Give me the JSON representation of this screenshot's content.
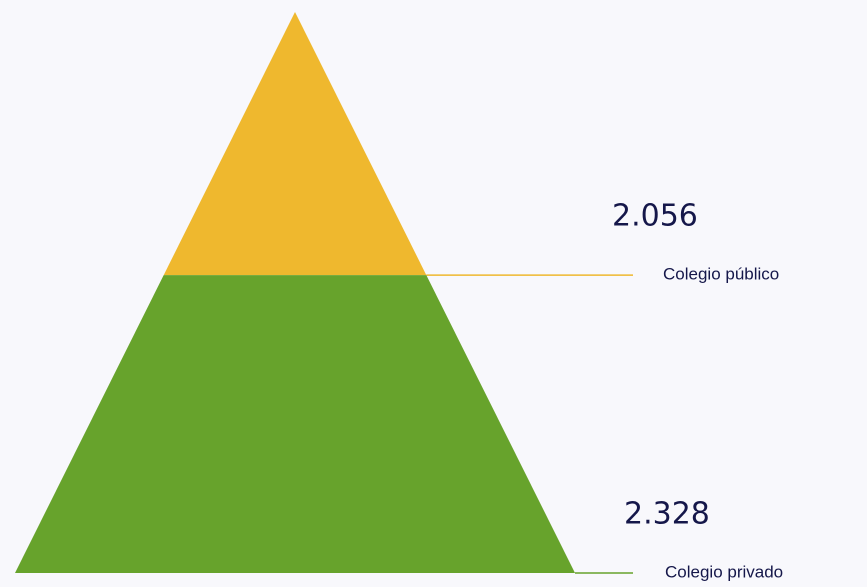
{
  "chart_data": {
    "type": "pyramid",
    "categories": [
      "Colegio público",
      "Colegio privado"
    ],
    "values": [
      2056,
      2328
    ],
    "value_labels": [
      "2.056",
      "2.328"
    ],
    "colors": [
      "#EFB82E",
      "#67A32C"
    ]
  }
}
